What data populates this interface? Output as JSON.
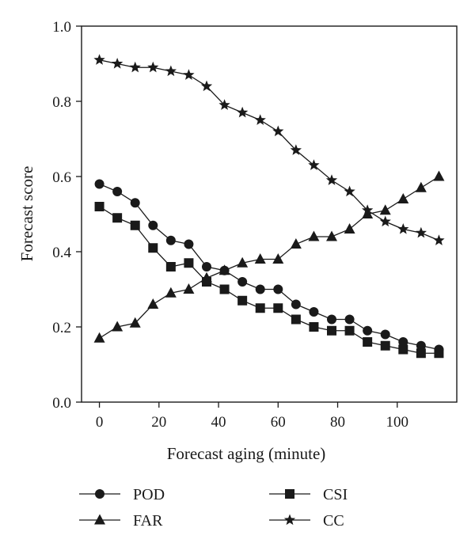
{
  "chart_data": {
    "type": "line",
    "xlabel": "Forecast aging (minute)",
    "ylabel": "Forecast score",
    "xlim": [
      -6,
      120
    ],
    "ylim": [
      0.0,
      1.0
    ],
    "x_ticks": [
      0,
      20,
      40,
      60,
      80,
      100
    ],
    "y_ticks": [
      0.0,
      0.2,
      0.4,
      0.6,
      0.8,
      1.0
    ],
    "x_tick_labels": [
      "0",
      "20",
      "40",
      "60",
      "80",
      "100"
    ],
    "y_tick_labels": [
      "0.0",
      "0.2",
      "0.4",
      "0.6",
      "0.8",
      "1.0"
    ],
    "grid": false,
    "legend_position": "bottom",
    "x": [
      0,
      6,
      12,
      18,
      24,
      30,
      36,
      42,
      48,
      54,
      60,
      66,
      72,
      78,
      84,
      90,
      96,
      102,
      108,
      114
    ],
    "series": [
      {
        "name": "POD",
        "marker": "circle",
        "values": [
          0.58,
          0.56,
          0.53,
          0.47,
          0.43,
          0.42,
          0.36,
          0.35,
          0.32,
          0.3,
          0.3,
          0.26,
          0.24,
          0.22,
          0.22,
          0.19,
          0.18,
          0.16,
          0.15,
          0.14
        ]
      },
      {
        "name": "CSI",
        "marker": "square",
        "values": [
          0.52,
          0.49,
          0.47,
          0.41,
          0.36,
          0.37,
          0.32,
          0.3,
          0.27,
          0.25,
          0.25,
          0.22,
          0.2,
          0.19,
          0.19,
          0.16,
          0.15,
          0.14,
          0.13,
          0.13
        ]
      },
      {
        "name": "FAR",
        "marker": "triangle",
        "values": [
          0.17,
          0.2,
          0.21,
          0.26,
          0.29,
          0.3,
          0.33,
          0.35,
          0.37,
          0.38,
          0.38,
          0.42,
          0.44,
          0.44,
          0.46,
          0.5,
          0.51,
          0.54,
          0.57,
          0.6
        ]
      },
      {
        "name": "CC",
        "marker": "star",
        "values": [
          0.91,
          0.9,
          0.89,
          0.89,
          0.88,
          0.87,
          0.84,
          0.79,
          0.77,
          0.75,
          0.72,
          0.67,
          0.63,
          0.59,
          0.56,
          0.51,
          0.48,
          0.46,
          0.45,
          0.43
        ]
      }
    ],
    "colors": {
      "line": "#1a1a1a",
      "marker": "#1a1a1a",
      "axis": "#1a1a1a"
    }
  }
}
